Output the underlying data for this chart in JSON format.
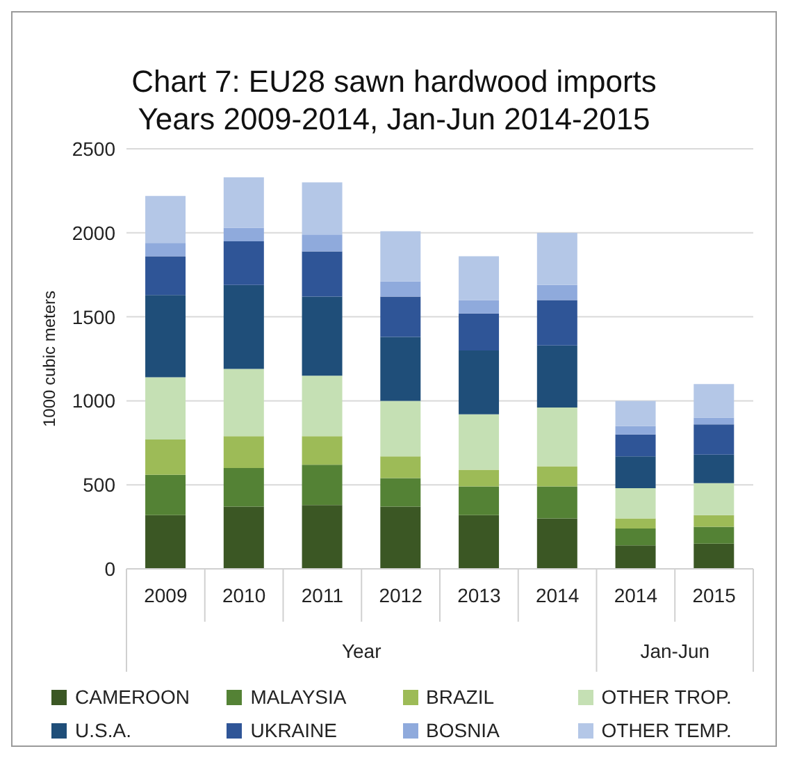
{
  "chart_data": {
    "type": "bar",
    "stacked": true,
    "title": "Chart 7: EU28 sawn hardwood imports",
    "subtitle": "Years 2009-2014, Jan-Jun 2014-2015",
    "ylabel": "1000 cubic meters",
    "categories": [
      "2009",
      "2010",
      "2011",
      "2012",
      "2013",
      "2014",
      "2014",
      "2015"
    ],
    "annotations": [
      "Year",
      "Jan-Jun"
    ],
    "series": [
      {
        "name": "CAMEROON",
        "color": "#3b5724",
        "values": [
          320,
          370,
          380,
          370,
          320,
          300,
          140,
          150
        ]
      },
      {
        "name": "MALAYSIA",
        "color": "#548235",
        "values": [
          240,
          230,
          240,
          170,
          170,
          190,
          100,
          100
        ]
      },
      {
        "name": "BRAZIL",
        "color": "#9dbb57",
        "values": [
          210,
          190,
          170,
          130,
          100,
          120,
          60,
          70
        ]
      },
      {
        "name": "OTHER TROP.",
        "color": "#c5e0b4",
        "values": [
          370,
          400,
          360,
          330,
          330,
          350,
          180,
          190
        ]
      },
      {
        "name": "U.S.A.",
        "color": "#1f4e79",
        "values": [
          490,
          500,
          470,
          380,
          380,
          370,
          190,
          170
        ]
      },
      {
        "name": "UKRAINE",
        "color": "#2f5597",
        "values": [
          230,
          260,
          270,
          240,
          220,
          270,
          130,
          180
        ]
      },
      {
        "name": "BOSNIA",
        "color": "#8faadc",
        "values": [
          80,
          80,
          100,
          90,
          80,
          90,
          50,
          40
        ]
      },
      {
        "name": "OTHER TEMP.",
        "color": "#b4c7e7",
        "values": [
          280,
          300,
          310,
          300,
          260,
          310,
          150,
          200
        ]
      }
    ],
    "ylim": [
      0,
      2500
    ],
    "yticks": [
      0,
      500,
      1000,
      1500,
      2000,
      2500
    ],
    "grid": "y",
    "legend": "bottom"
  }
}
